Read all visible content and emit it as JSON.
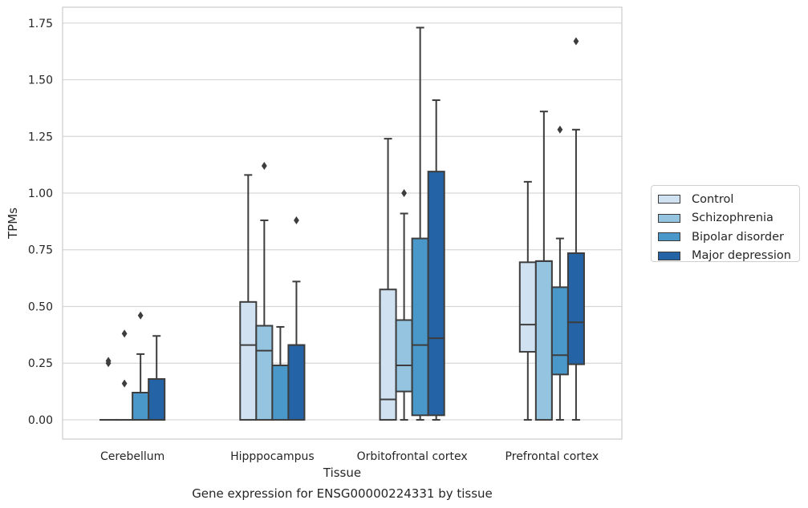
{
  "chart_data": {
    "type": "boxplot",
    "title": "Gene expression for ENSG00000224331 by tissue",
    "xlabel": "Tissue",
    "ylabel": "TPMs",
    "ylim": [
      -0.085,
      1.82
    ],
    "yticks": [
      "0.00",
      "0.25",
      "0.50",
      "0.75",
      "1.00",
      "1.25",
      "1.50",
      "1.75"
    ],
    "ytick_values": [
      0,
      0.25,
      0.5,
      0.75,
      1.0,
      1.25,
      1.5,
      1.75
    ],
    "grid": true,
    "legend_position": "right",
    "categories": [
      "Cerebellum",
      "Hipppocampus",
      "Orbitofrontal cortex",
      "Prefrontal cortex"
    ],
    "series": [
      {
        "name": "Control",
        "color": "#d0e1f2",
        "boxes": [
          {
            "whisker_low": 0,
            "q1": 0,
            "median": 0,
            "q3": 0,
            "whisker_high": 0,
            "outliers": [
              0.25,
              0.26
            ]
          },
          {
            "whisker_low": 0,
            "q1": 0,
            "median": 0.33,
            "q3": 0.52,
            "whisker_high": 1.08,
            "outliers": []
          },
          {
            "whisker_low": 0,
            "q1": 0,
            "median": 0.09,
            "q3": 0.575,
            "whisker_high": 1.24,
            "outliers": []
          },
          {
            "whisker_low": 0,
            "q1": 0.3,
            "median": 0.42,
            "q3": 0.695,
            "whisker_high": 1.05,
            "outliers": []
          }
        ]
      },
      {
        "name": "Schizophrenia",
        "color": "#94c4df",
        "boxes": [
          {
            "whisker_low": 0,
            "q1": 0,
            "median": 0,
            "q3": 0,
            "whisker_high": 0,
            "outliers": [
              0.16,
              0.38
            ]
          },
          {
            "whisker_low": 0,
            "q1": 0,
            "median": 0.305,
            "q3": 0.415,
            "whisker_high": 0.88,
            "outliers": [
              1.12
            ]
          },
          {
            "whisker_low": 0,
            "q1": 0.125,
            "median": 0.24,
            "q3": 0.44,
            "whisker_high": 0.91,
            "outliers": [
              1.0
            ]
          },
          {
            "whisker_low": 0,
            "q1": 0,
            "median": 0.7,
            "q3": 0.7,
            "whisker_high": 1.36,
            "outliers": []
          }
        ]
      },
      {
        "name": "Bipolar disorder",
        "color": "#4a98c9",
        "boxes": [
          {
            "whisker_low": 0,
            "q1": 0,
            "median": 0,
            "q3": 0.12,
            "whisker_high": 0.29,
            "outliers": [
              0.46
            ]
          },
          {
            "whisker_low": 0,
            "q1": 0,
            "median": 0.24,
            "q3": 0.24,
            "whisker_high": 0.41,
            "outliers": []
          },
          {
            "whisker_low": 0,
            "q1": 0.02,
            "median": 0.33,
            "q3": 0.8,
            "whisker_high": 1.73,
            "outliers": []
          },
          {
            "whisker_low": 0,
            "q1": 0.2,
            "median": 0.285,
            "q3": 0.585,
            "whisker_high": 0.8,
            "outliers": [
              1.28
            ]
          }
        ]
      },
      {
        "name": "Major depression",
        "color": "#2363a6",
        "boxes": [
          {
            "whisker_low": 0,
            "q1": 0,
            "median": 0,
            "q3": 0.18,
            "whisker_high": 0.37,
            "outliers": []
          },
          {
            "whisker_low": 0,
            "q1": 0,
            "median": 0.33,
            "q3": 0.33,
            "whisker_high": 0.61,
            "outliers": [
              0.88
            ]
          },
          {
            "whisker_low": 0,
            "q1": 0.02,
            "median": 0.36,
            "q3": 1.095,
            "whisker_high": 1.41,
            "outliers": []
          },
          {
            "whisker_low": 0,
            "q1": 0.245,
            "median": 0.43,
            "q3": 0.735,
            "whisker_high": 1.28,
            "outliers": [
              1.67
            ]
          }
        ]
      }
    ]
  }
}
